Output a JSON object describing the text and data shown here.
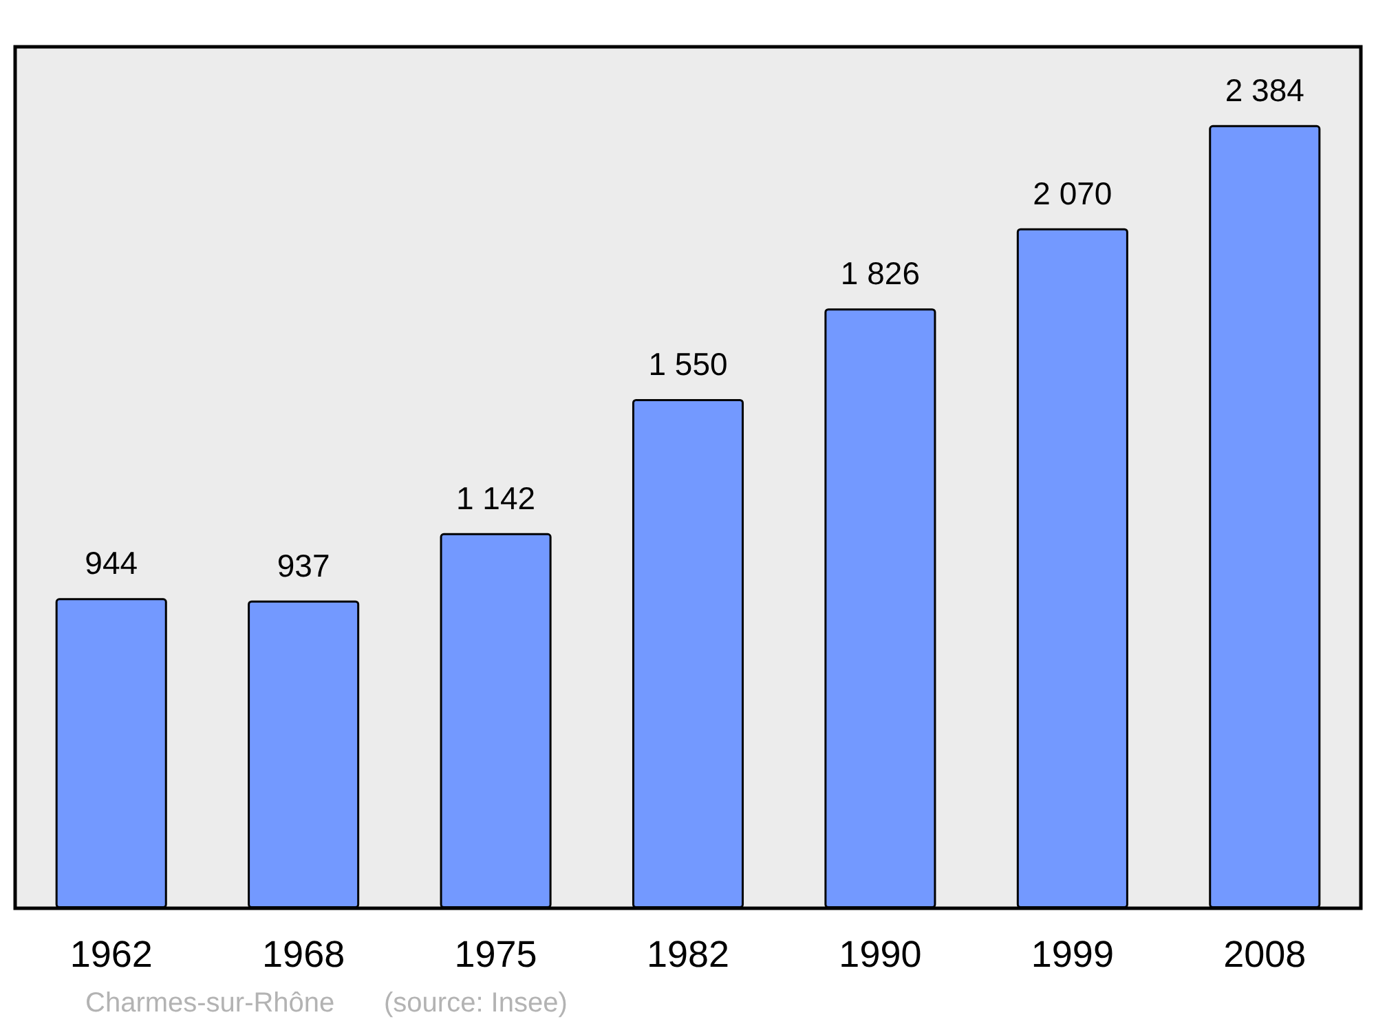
{
  "chart_data": {
    "type": "bar",
    "categories": [
      "1962",
      "1968",
      "1975",
      "1982",
      "1990",
      "1999",
      "2008"
    ],
    "values": [
      944,
      937,
      1142,
      1550,
      1826,
      2070,
      2384
    ],
    "value_labels": [
      "944",
      "937",
      "1 142",
      "1 550",
      "1 826",
      "2 070",
      "2 384"
    ],
    "color": "#7399ff",
    "annotations": [
      "Charmes-sur-Rhône",
      "(source: Insee)"
    ]
  }
}
